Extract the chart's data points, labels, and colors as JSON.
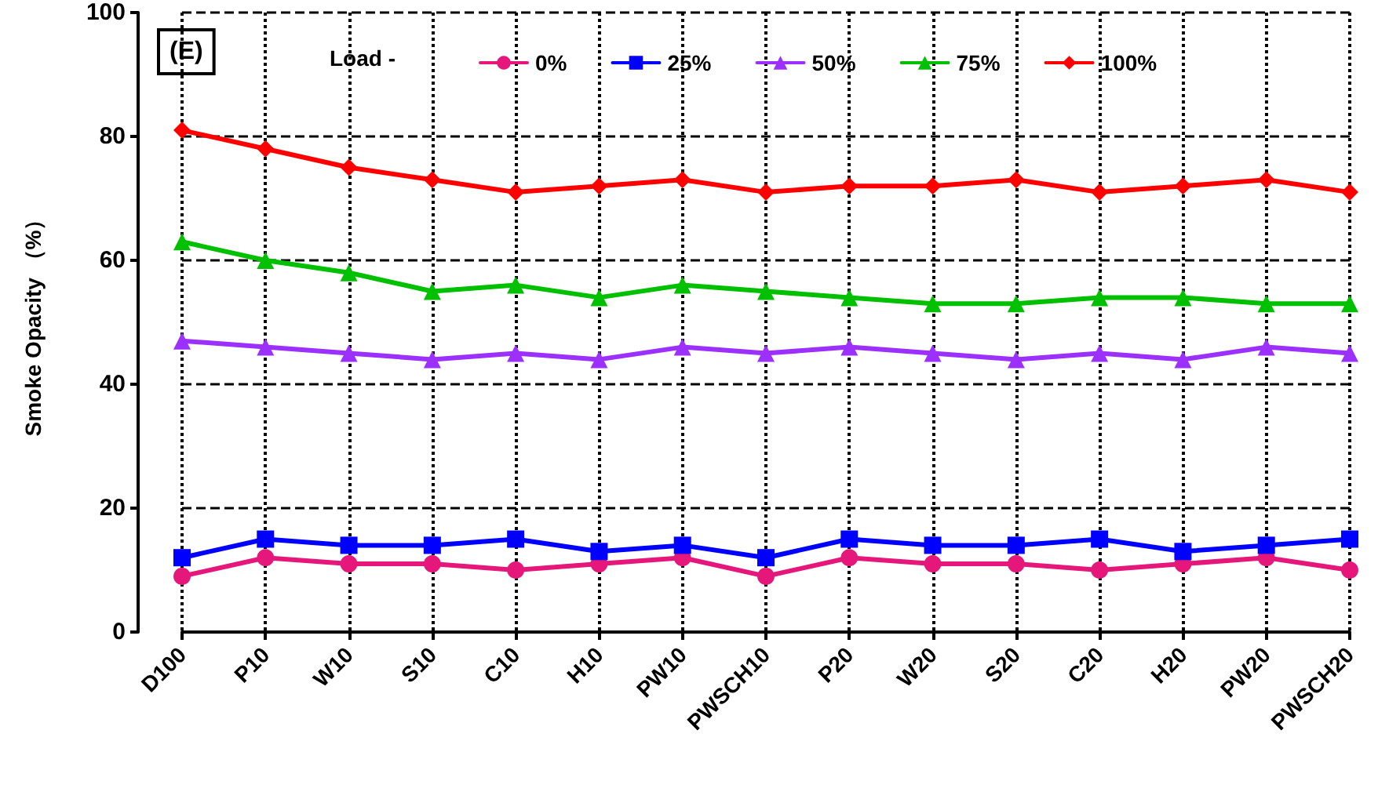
{
  "chart_data": {
    "type": "line",
    "ylabel": "Smoke Opacity （%）",
    "legend_title": "Load -",
    "annotations": [
      "(E)"
    ],
    "categories": [
      "D100",
      "P10",
      "W10",
      "S10",
      "C10",
      "H10",
      "PW10",
      "PWSCH10",
      "P20",
      "W20",
      "S20",
      "C20",
      "H20",
      "PW20",
      "PWSCH20"
    ],
    "series": [
      {
        "name": "0%",
        "color": "#e6177a",
        "marker": "circle",
        "values": [
          9,
          12,
          11,
          11,
          10,
          11,
          12,
          9,
          12,
          11,
          11,
          10,
          11,
          12,
          10
        ]
      },
      {
        "name": "25%",
        "color": "#0000ff",
        "marker": "square",
        "values": [
          12,
          15,
          14,
          14,
          15,
          13,
          14,
          12,
          15,
          14,
          14,
          15,
          13,
          14,
          15
        ]
      },
      {
        "name": "50%",
        "color": "#9b30ff",
        "marker": "triangle",
        "values": [
          47,
          46,
          45,
          44,
          45,
          44,
          46,
          45,
          46,
          45,
          44,
          45,
          44,
          46,
          45
        ]
      },
      {
        "name": "75%",
        "color": "#00c000",
        "marker": "triangle",
        "values": [
          63,
          60,
          58,
          55,
          56,
          54,
          56,
          55,
          54,
          53,
          53,
          54,
          54,
          53,
          53
        ]
      },
      {
        "name": "100%",
        "color": "#ff0000",
        "marker": "diamond",
        "values": [
          81,
          78,
          75,
          73,
          71,
          72,
          73,
          71,
          72,
          72,
          73,
          71,
          72,
          73,
          71
        ]
      }
    ],
    "ylim": [
      0,
      100
    ],
    "yticks": [
      0,
      20,
      40,
      60,
      80,
      100
    ],
    "grid": true,
    "legend": "top",
    "line_style": "solid"
  }
}
